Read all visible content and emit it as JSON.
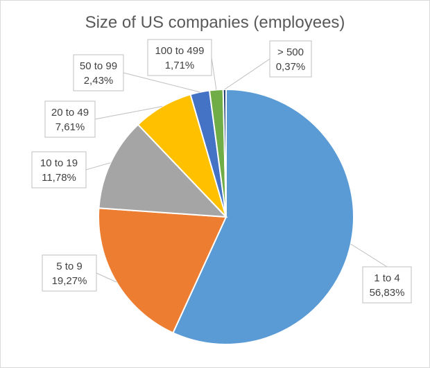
{
  "chart_data": {
    "type": "pie",
    "title": "Size of US companies (employees)",
    "start_angle_deg": 0,
    "direction": "clockwise",
    "slices": [
      {
        "label": "1 to 4",
        "value_text": "56,83%",
        "value": 56.83,
        "color": "#5B9BD5"
      },
      {
        "label": "5 to 9",
        "value_text": "19,27%",
        "value": 19.27,
        "color": "#ED7D31"
      },
      {
        "label": "10 to 19",
        "value_text": "11,78%",
        "value": 11.78,
        "color": "#A5A5A5"
      },
      {
        "label": "20 to 49",
        "value_text": "7,61%",
        "value": 7.61,
        "color": "#FFC000"
      },
      {
        "label": "50 to 99",
        "value_text": "2,43%",
        "value": 2.43,
        "color": "#4472C4"
      },
      {
        "label": "100 to 499",
        "value_text": "1,71%",
        "value": 1.71,
        "color": "#70AD47"
      },
      {
        "label": "> 500",
        "value_text": "0,37%",
        "value": 0.37,
        "color": "#264478"
      }
    ]
  }
}
